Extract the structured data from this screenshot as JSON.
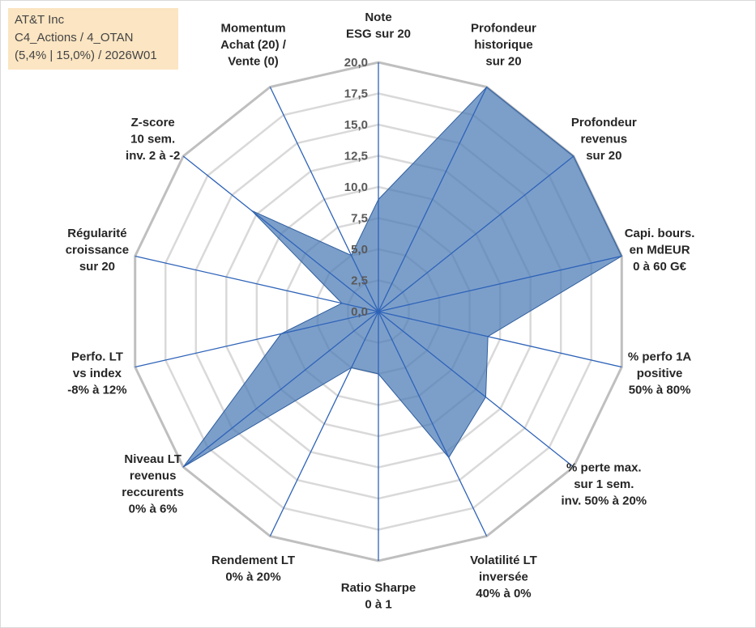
{
  "info": {
    "line1": "AT&T Inc",
    "line2": "C4_Actions / 4_OTAN",
    "line3": "(5,4% | 15,0%) / 2026W01"
  },
  "colors": {
    "fill": "#4a7ab5",
    "stroke": "#2f5e9e",
    "axis": "#2e63b8",
    "grid_outer": "#bfbfbf",
    "grid_inner": "#d9d9d9",
    "background": "#ffffff",
    "info_bg": "#fbe5c2"
  },
  "chart_data": {
    "type": "radar",
    "title": "",
    "rlim": [
      0,
      20
    ],
    "tick_step": 2.5,
    "ticks": [
      "0,0",
      "2,5",
      "5,0",
      "7,5",
      "10,0",
      "12,5",
      "15,0",
      "17,5",
      "20,0"
    ],
    "axes": [
      {
        "label": [
          "Note",
          "ESG sur 20"
        ],
        "value": 9.0
      },
      {
        "label": [
          "Profondeur",
          "historique",
          "sur 20"
        ],
        "value": 20.0
      },
      {
        "label": [
          "Profondeur",
          "revenus",
          "sur 20"
        ],
        "value": 20.0
      },
      {
        "label": [
          "Capi. bours.",
          "en MdEUR",
          "0 à 60 G€"
        ],
        "value": 20.0
      },
      {
        "label": [
          "% perfo 1A",
          "positive",
          "50% à 80%"
        ],
        "value": 9.0
      },
      {
        "label": [
          "% perte max.",
          "sur 1 sem.",
          "inv. 50% à 20%"
        ],
        "value": 11.0
      },
      {
        "label": [
          "Volatilité LT",
          "inversée",
          "40% à 0%"
        ],
        "value": 13.0
      },
      {
        "label": [
          "Ratio Sharpe",
          "0 à 1"
        ],
        "value": 5.0
      },
      {
        "label": [
          "Rendement LT",
          "0% à 20%"
        ],
        "value": 5.0
      },
      {
        "label": [
          "Niveau LT",
          "revenus",
          "reccurents",
          "0% à 6%"
        ],
        "value": 20.0
      },
      {
        "label": [
          "Perfo. LT",
          "vs index",
          "-8% à 12%"
        ],
        "value": 8.0
      },
      {
        "label": [
          "Régularité",
          "croissance",
          "sur 20"
        ],
        "value": 3.0
      },
      {
        "label": [
          "Z-score",
          "10 sem.",
          "inv. 2 à -2"
        ],
        "value": 13.0
      },
      {
        "label": [
          "Momentum",
          "Achat (20) /",
          "Vente (0)"
        ],
        "value": 5.0
      }
    ]
  }
}
